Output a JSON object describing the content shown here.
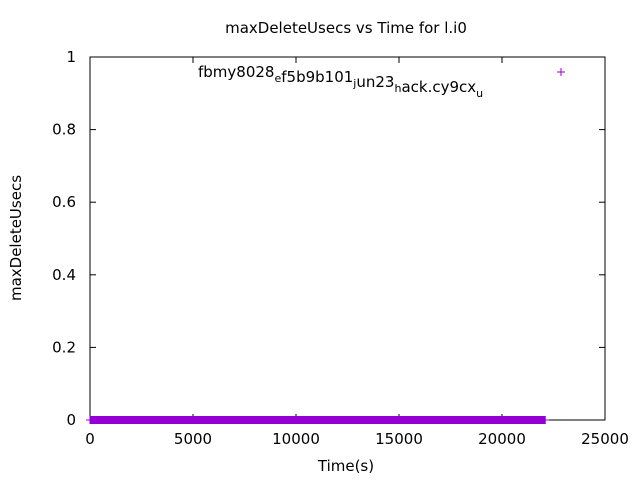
{
  "chart_data": {
    "type": "scatter",
    "title": "maxDeleteUsecs vs Time for l.i0",
    "xlabel": "Time(s)",
    "ylabel": "maxDeleteUsecs",
    "xlim": [
      0,
      25000
    ],
    "ylim": [
      0,
      1
    ],
    "xticks": [
      0,
      5000,
      10000,
      15000,
      20000,
      25000
    ],
    "yticks": [
      0,
      0.2,
      0.4,
      0.6,
      0.8,
      1
    ],
    "xtick_labels": [
      "0",
      "5000",
      "10000",
      "15000",
      "20000",
      "25000"
    ],
    "ytick_labels": [
      "0",
      "0.2",
      "0.4",
      "0.6",
      "0.8",
      "1"
    ],
    "grid": false,
    "legend_position": "top-right",
    "legend": {
      "parts": [
        {
          "text": "fbmy8028",
          "sub": false
        },
        {
          "text": "e",
          "sub": true
        },
        {
          "text": "f5b9b101",
          "sub": false
        },
        {
          "text": "j",
          "sub": true
        },
        {
          "text": "un23",
          "sub": false
        },
        {
          "text": "h",
          "sub": true
        },
        {
          "text": "ack.cy9cx",
          "sub": false
        },
        {
          "text": "u",
          "sub": true
        }
      ]
    },
    "series": [
      {
        "name": "fbmy8028_ef5b9b101_jun23_hack.cy9cx_u",
        "color": "#9400d3",
        "marker": "plus",
        "x_start": 0,
        "x_end": 22100,
        "x_step": 25,
        "y_value": 0
      }
    ]
  }
}
